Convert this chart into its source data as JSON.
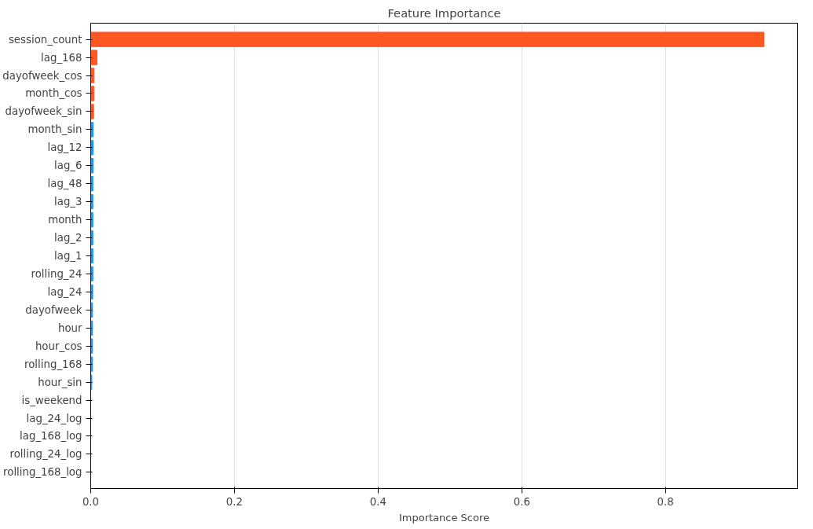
{
  "chart_data": {
    "type": "bar",
    "orientation": "horizontal",
    "title": "Feature Importance",
    "xlabel": "Importance Score",
    "categories": [
      "session_count",
      "lag_168",
      "dayofweek_cos",
      "month_cos",
      "dayofweek_sin",
      "month_sin",
      "lag_12",
      "lag_6",
      "lag_48",
      "lag_3",
      "month",
      "lag_2",
      "lag_1",
      "rolling_24",
      "lag_24",
      "dayofweek",
      "hour",
      "hour_cos",
      "rolling_168",
      "hour_sin",
      "is_weekend",
      "lag_24_log",
      "lag_168_log",
      "rolling_24_log",
      "rolling_168_log"
    ],
    "values": [
      0.937,
      0.0088,
      0.0047,
      0.0047,
      0.004,
      0.0035,
      0.0035,
      0.0035,
      0.003,
      0.003,
      0.003,
      0.003,
      0.003,
      0.003,
      0.0028,
      0.0025,
      0.0025,
      0.0025,
      0.0025,
      0.0015,
      0,
      0,
      0,
      0,
      0
    ],
    "colors": [
      "#ff5722",
      "#ff5722",
      "#ff5722",
      "#ff5722",
      "#ff5722",
      "#2196f3",
      "#2196f3",
      "#2196f3",
      "#2196f3",
      "#2196f3",
      "#2196f3",
      "#2196f3",
      "#2196f3",
      "#2196f3",
      "#2196f3",
      "#2196f3",
      "#2196f3",
      "#2196f3",
      "#2196f3",
      "#2196f3",
      "#2196f3",
      "#2196f3",
      "#2196f3",
      "#2196f3",
      "#2196f3"
    ],
    "xlim": [
      0,
      0.984
    ],
    "xticks": [
      {
        "value": 0,
        "label": "0.0"
      },
      {
        "value": 0.2,
        "label": "0.2"
      },
      {
        "value": 0.4,
        "label": "0.4"
      },
      {
        "value": 0.6,
        "label": "0.6"
      },
      {
        "value": 0.8,
        "label": "0.8"
      }
    ],
    "grid": "x"
  }
}
